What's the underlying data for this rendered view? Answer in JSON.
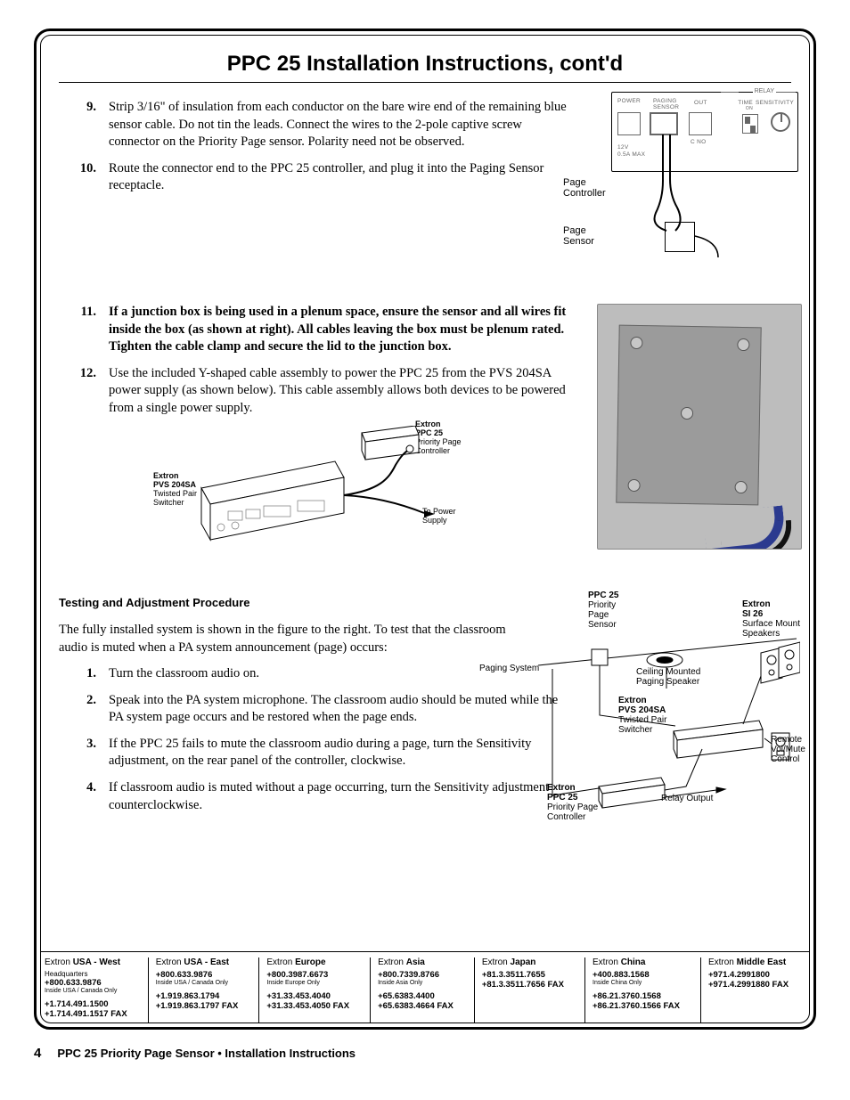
{
  "title": "PPC 25 Installation Instructions, cont'd",
  "steps_a": [
    {
      "n": "9",
      "html": "Strip 3/16\" of insulation from each conductor on the bare wire end of the remaining blue sensor cable.  Do not tin the leads.  Connect the wires to the 2-pole captive screw connector on the Priority Page sensor.  Polarity need not be observed."
    },
    {
      "n": "10",
      "html": "Route the connector end to the PPC 25 controller, and plug it into the Paging Sensor receptacle."
    }
  ],
  "steps_b": [
    {
      "n": "11",
      "bold": true,
      "html": "If a junction box is being used in a plenum space, ensure the sensor and all wires fit inside the box (as shown at right).  All cables leaving the box must be plenum rated.  Tighten the cable clamp and secure the lid to the junction box."
    },
    {
      "n": "12",
      "html": "Use the included Y-shaped cable assembly to power the PPC 25 from the PVS 204SA  power supply (as shown below).  This cable assembly allows both devices to be powered from a single power supply."
    }
  ],
  "diag1": {
    "relay": "RELAY",
    "labels": {
      "power": "POWER",
      "paging": "PAGING",
      "sensor": "SENSOR",
      "out": "OUT",
      "time": "TIME",
      "sens": "SENSITIVITY",
      "on": "ON",
      "cno": "C   NO",
      "v": "12V",
      "a": "0.5A  MAX"
    },
    "page_controller": "Page\nController",
    "page_sensor": "Page\nSensor"
  },
  "inline": {
    "pvs_t": "Extron\nPVS 204SA",
    "pvs_s": "Twisted Pair\nSwitcher",
    "ppc_t": "Extron\nPPC 25",
    "ppc_s": "Priority Page\nController",
    "supply": "To Power\nSupply"
  },
  "testing_heading": "Testing and Adjustment Procedure",
  "testing_intro": "The fully installed system is shown in the figure to the right.  To test that the classroom audio is muted when a PA system announcement (page) occurs:",
  "testing_steps": [
    {
      "n": "1",
      "html": "Turn the classroom audio on."
    },
    {
      "n": "2",
      "html": "Speak into the PA system microphone.  The classroom audio should be muted while the PA system page occurs and be restored when the page ends."
    },
    {
      "n": "3",
      "html": "If the PPC 25 fails to mute the classroom audio during a page, turn the Sensitivity adjustment, on the rear panel of the controller, clockwise."
    },
    {
      "n": "4",
      "html": "If classroom audio is muted without a page occurring, turn the Sensitivity adjustment counterclockwise."
    }
  ],
  "sys": {
    "ppc25": "PPC 25",
    "pps": "Priority\nPage\nSensor",
    "si26_t": "Extron\nSI 26",
    "si26_s": "Surface Mount\nSpeakers",
    "paging_sys": "Paging System",
    "ceiling": "Ceiling Mounted\nPaging Speaker",
    "pvs_t": "Extron\nPVS 204SA",
    "pvs_s": "Twisted Pair\nSwitcher",
    "remote": "Remote\nVol/Mute\nControl",
    "ext_ppc": "Extron\nPPC 25",
    "ext_ppc_s": "Priority Page\nController",
    "relay": "Relay Output"
  },
  "contacts": [
    {
      "region_pre": "Extron ",
      "region": "USA - West",
      "lines": [
        {
          "t": "Headquarters",
          "cls": "sm"
        },
        {
          "t": "+800.633.9876",
          "cls": "ph"
        },
        {
          "t": "Inside USA / Canada Only",
          "cls": "note"
        },
        {
          "t": "+1.714.491.1500",
          "cls": "ph",
          "mt": 6
        },
        {
          "t": "+1.714.491.1517 FAX",
          "cls": "ph"
        }
      ]
    },
    {
      "region_pre": "Extron ",
      "region": "USA - East",
      "lines": [
        {
          "t": "+800.633.9876",
          "cls": "ph"
        },
        {
          "t": "Inside USA / Canada Only",
          "cls": "note"
        },
        {
          "t": "+1.919.863.1794",
          "cls": "ph",
          "mt": 6
        },
        {
          "t": "+1.919.863.1797 FAX",
          "cls": "ph"
        }
      ]
    },
    {
      "region_pre": "Extron ",
      "region": "Europe",
      "lines": [
        {
          "t": "+800.3987.6673",
          "cls": "ph"
        },
        {
          "t": "Inside Europe Only",
          "cls": "note"
        },
        {
          "t": "+31.33.453.4040",
          "cls": "ph",
          "mt": 6
        },
        {
          "t": "+31.33.453.4050 FAX",
          "cls": "ph"
        }
      ]
    },
    {
      "region_pre": "Extron ",
      "region": "Asia",
      "lines": [
        {
          "t": "+800.7339.8766",
          "cls": "ph"
        },
        {
          "t": "Inside Asia Only",
          "cls": "note"
        },
        {
          "t": "+65.6383.4400",
          "cls": "ph",
          "mt": 6
        },
        {
          "t": "+65.6383.4664 FAX",
          "cls": "ph"
        }
      ]
    },
    {
      "region_pre": "Extron ",
      "region": "Japan",
      "lines": [
        {
          "t": "+81.3.3511.7655",
          "cls": "ph"
        },
        {
          "t": "+81.3.3511.7656 FAX",
          "cls": "ph"
        }
      ]
    },
    {
      "region_pre": "Extron ",
      "region": "China",
      "lines": [
        {
          "t": "+400.883.1568",
          "cls": "ph"
        },
        {
          "t": "Inside China Only",
          "cls": "note"
        },
        {
          "t": "+86.21.3760.1568",
          "cls": "ph",
          "mt": 6
        },
        {
          "t": "+86.21.3760.1566 FAX",
          "cls": "ph"
        }
      ]
    },
    {
      "region_pre": "Extron ",
      "region": "Middle East",
      "lines": [
        {
          "t": "+971.4.2991800",
          "cls": "ph"
        },
        {
          "t": "+971.4.2991880 FAX",
          "cls": "ph"
        }
      ]
    }
  ],
  "footer": {
    "page": "4",
    "text": "PPC 25 Priority Page Sensor • Installation Instructions"
  },
  "colors": {
    "text": "#000000",
    "grey": "#808080",
    "jbox": "#9b9b9b",
    "photo_bg": "#bdbdbd",
    "wire_blue": "#2b3a8f"
  }
}
